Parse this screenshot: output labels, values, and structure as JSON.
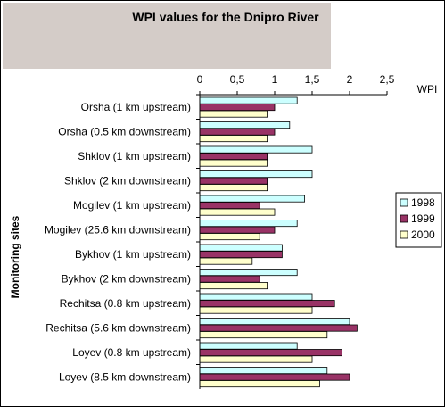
{
  "chart_data": {
    "type": "bar",
    "orientation": "horizontal",
    "title": "WPI values for the Dnipro River",
    "xlabel": "WPI",
    "ylabel": "Monitoring sites",
    "xlim": [
      0,
      2.5
    ],
    "x_ticks": [
      "0",
      "0,5",
      "1",
      "1,5",
      "2",
      "2,5"
    ],
    "x_tick_values": [
      0,
      0.5,
      1,
      1.5,
      2,
      2.5
    ],
    "categories": [
      "Orsha  (1 km upstream)",
      "Orsha  (0.5 km downstream)",
      "Shklov (1 km upstream)",
      "Shklov  (2 km downstream)",
      "Mogilev (1 km upstream)",
      "Mogilev (25.6 km downstream)",
      "Bykhov (1 km upstream)",
      "Bykhov (2 km downstream)",
      "Rechitsa (0.8 km upstream)",
      "Rechitsa (5.6 km downstream)",
      "Loyev (0.8 km upstream)",
      "Loyev (8.5 km downstream)"
    ],
    "series": [
      {
        "name": "1998",
        "color": "#ccffff",
        "values": [
          1.3,
          1.2,
          1.5,
          1.5,
          1.4,
          1.3,
          1.1,
          1.3,
          1.5,
          2.0,
          1.3,
          1.7
        ]
      },
      {
        "name": "1999",
        "color": "#993366",
        "values": [
          1.0,
          1.0,
          0.9,
          0.9,
          0.8,
          1.0,
          1.1,
          0.8,
          1.8,
          2.1,
          1.9,
          2.0
        ]
      },
      {
        "name": "2000",
        "color": "#ffffcc",
        "values": [
          0.9,
          0.9,
          0.9,
          0.9,
          1.0,
          0.8,
          0.7,
          0.9,
          1.5,
          1.7,
          1.5,
          1.6
        ]
      }
    ],
    "legend_position": "right",
    "grid": false,
    "title_background": "#d4ccc8"
  }
}
